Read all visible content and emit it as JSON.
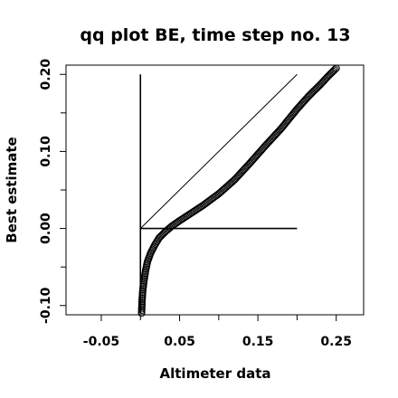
{
  "chart_data": {
    "type": "scatter",
    "title": "qq plot BE, time step no. 13",
    "xlabel": "Altimeter data",
    "ylabel": "Best estimate",
    "xlim": [
      -0.095,
      0.285
    ],
    "ylim": [
      -0.112,
      0.212
    ],
    "xticks": [
      {
        "value": -0.05,
        "label": "-0.05"
      },
      {
        "value": 0.05,
        "label": "0.05"
      },
      {
        "value": 0.15,
        "label": "0.15"
      },
      {
        "value": 0.25,
        "label": "0.25"
      }
    ],
    "xminor": [
      0.0,
      0.1,
      0.2
    ],
    "yticks": [
      {
        "value": -0.1,
        "label": "-0.10"
      },
      {
        "value": 0.0,
        "label": "0.00"
      },
      {
        "value": 0.1,
        "label": "0.10"
      },
      {
        "value": 0.2,
        "label": "0.20"
      }
    ],
    "yminor": [
      -0.05,
      0.05,
      0.15
    ],
    "reference_lines": [
      {
        "x": [
          0.0,
          0.2
        ],
        "y": [
          0.0,
          0.2
        ]
      },
      {
        "x": [
          0.0,
          0.2
        ],
        "y": [
          0.0,
          0.0
        ]
      },
      {
        "x": [
          0.0,
          0.0
        ],
        "y": [
          -0.11,
          0.2
        ]
      }
    ],
    "marker": "open-circle",
    "color": "#000000",
    "curve": [
      [
        0.0015,
        -0.11
      ],
      [
        0.002,
        -0.095
      ],
      [
        0.003,
        -0.08
      ],
      [
        0.0045,
        -0.068
      ],
      [
        0.0065,
        -0.055
      ],
      [
        0.009,
        -0.043
      ],
      [
        0.013,
        -0.032
      ],
      [
        0.018,
        -0.022
      ],
      [
        0.024,
        -0.012
      ],
      [
        0.032,
        -0.004
      ],
      [
        0.04,
        0.003
      ],
      [
        0.05,
        0.01
      ],
      [
        0.065,
        0.02
      ],
      [
        0.08,
        0.03
      ],
      [
        0.1,
        0.045
      ],
      [
        0.12,
        0.063
      ],
      [
        0.14,
        0.085
      ],
      [
        0.16,
        0.108
      ],
      [
        0.18,
        0.13
      ],
      [
        0.2,
        0.155
      ],
      [
        0.215,
        0.172
      ],
      [
        0.23,
        0.187
      ],
      [
        0.24,
        0.198
      ],
      [
        0.25,
        0.208
      ]
    ],
    "n_points": 220
  }
}
